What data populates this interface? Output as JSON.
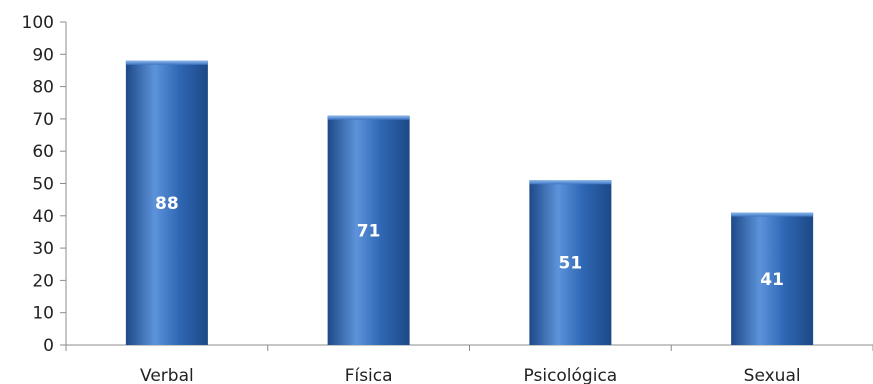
{
  "chart_data": {
    "type": "bar",
    "categories": [
      "Verbal",
      "Física",
      "Psicológica",
      "Sexual"
    ],
    "values": [
      88,
      71,
      51,
      41
    ],
    "data_labels": [
      "88",
      "71",
      "51",
      "41"
    ],
    "title": "",
    "xlabel": "",
    "ylabel": "",
    "ylim": [
      0,
      100
    ],
    "y_ticks": [
      0,
      10,
      20,
      30,
      40,
      50,
      60,
      70,
      80,
      90,
      100
    ],
    "grid": false,
    "legend": "none",
    "bar_color": "#2F67B4",
    "bar_color_light": "#5D93DA",
    "bar_color_dark": "#1D4987",
    "label_color": "#ffffff"
  }
}
